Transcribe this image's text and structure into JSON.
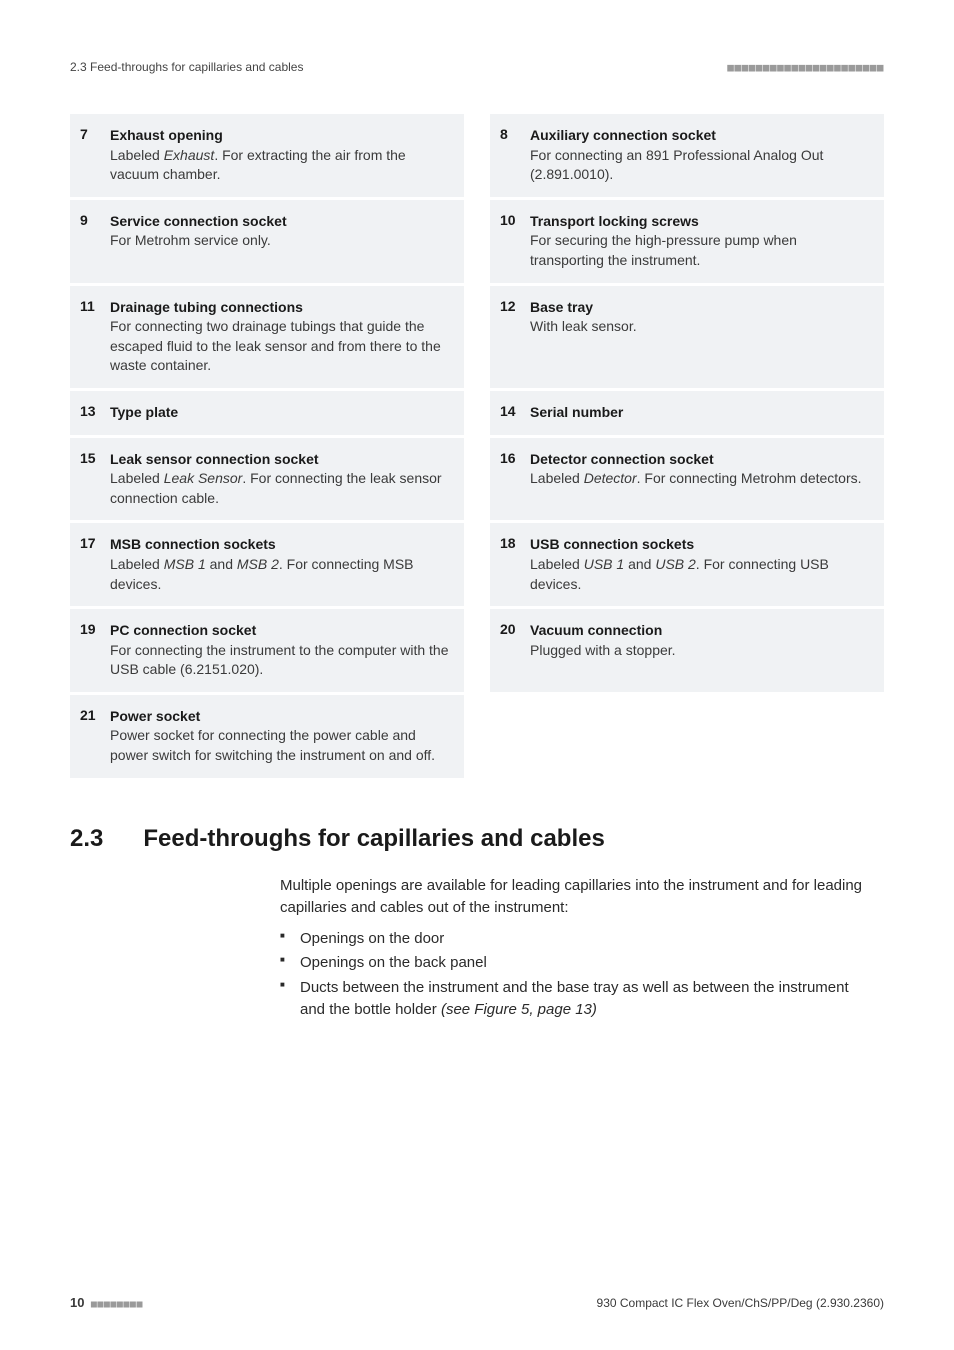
{
  "header": {
    "left": "2.3 Feed-throughs for capillaries and cables",
    "right_dashes": "■■■■■■■■■■■■■■■■■■■■■■"
  },
  "legend": [
    {
      "num": "7",
      "title": "Exhaust opening",
      "desc": "Labeled <em>Exhaust</em>. For extracting the air from the vacuum chamber."
    },
    {
      "num": "8",
      "title": "Auxiliary connection socket",
      "desc": "For connecting an 891 Professional Analog Out (2.891.0010)."
    },
    {
      "num": "9",
      "title": "Service connection socket",
      "desc": "For Metrohm service only."
    },
    {
      "num": "10",
      "title": "Transport locking screws",
      "desc": "For securing the high-pressure pump when transporting the instrument."
    },
    {
      "num": "11",
      "title": "Drainage tubing connections",
      "desc": "For connecting two drainage tubings that guide the escaped fluid to the leak sensor and from there to the waste container."
    },
    {
      "num": "12",
      "title": "Base tray",
      "desc": "With leak sensor."
    },
    {
      "num": "13",
      "title": "Type plate",
      "desc": ""
    },
    {
      "num": "14",
      "title": "Serial number",
      "desc": ""
    },
    {
      "num": "15",
      "title": "Leak sensor connection socket",
      "desc": "Labeled <em>Leak Sensor</em>. For connecting the leak sensor connection cable."
    },
    {
      "num": "16",
      "title": "Detector connection socket",
      "desc": "Labeled <em>Detector</em>. For connecting Metrohm detectors."
    },
    {
      "num": "17",
      "title": "MSB connection sockets",
      "desc": "Labeled <em>MSB 1</em> and <em>MSB 2</em>. For connecting MSB devices."
    },
    {
      "num": "18",
      "title": "USB connection sockets",
      "desc": "Labeled <em>USB 1</em> and <em>USB 2</em>. For connecting USB devices."
    },
    {
      "num": "19",
      "title": "PC connection socket",
      "desc": "For connecting the instrument to the computer with the USB cable (6.2151.020)."
    },
    {
      "num": "20",
      "title": "Vacuum connection",
      "desc": "Plugged with a stopper."
    },
    {
      "num": "21",
      "title": "Power socket",
      "desc": "Power socket for connecting the power cable and power switch for switching the instrument on and off."
    },
    {
      "num": "",
      "title": "",
      "desc": ""
    }
  ],
  "section": {
    "num": "2.3",
    "title": "Feed-throughs for capillaries and cables"
  },
  "prose": {
    "intro": "Multiple openings are available for leading capillaries into the instrument and for leading capillaries and cables out of the instrument:",
    "bullets": [
      "Openings on the door",
      "Openings on the back panel",
      "Ducts between the instrument and the base tray as well as between the instrument and the bottle holder <em>(see Figure 5, page 13)</em>"
    ]
  },
  "footer": {
    "page": "10",
    "dashes": "■■■■■■■■",
    "right": "930 Compact IC Flex Oven/ChS/PP/Deg (2.930.2360)"
  },
  "style": {
    "row_bg": "#f0f2f4",
    "text_color": "#3a3a3a",
    "title_color": "#1a1a1a",
    "dash_color": "#9a9a9a"
  }
}
